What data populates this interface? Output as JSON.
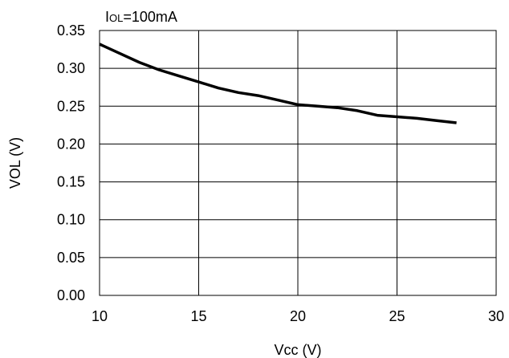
{
  "chart_data": {
    "type": "line",
    "title": "",
    "annotation": {
      "prefix": "I",
      "subscript": "OL",
      "suffix": "=100mA"
    },
    "xlabel": "Vcc (V)",
    "ylabel": "VOL (V)",
    "xlim": [
      10,
      30
    ],
    "ylim": [
      0,
      0.35
    ],
    "xticks": [
      10,
      15,
      20,
      25,
      30
    ],
    "xtick_labels": [
      "10",
      "15",
      "20",
      "25",
      "30"
    ],
    "yticks": [
      0,
      0.05,
      0.1,
      0.15,
      0.2,
      0.25,
      0.3,
      0.35
    ],
    "ytick_labels": [
      "0.00",
      "0.05",
      "0.10",
      "0.15",
      "0.20",
      "0.25",
      "0.30",
      "0.35"
    ],
    "grid": true,
    "line_color": "#000000",
    "series": [
      {
        "x": [
          10,
          11,
          12,
          13,
          14,
          15,
          16,
          17,
          18,
          19,
          20,
          21,
          22,
          23,
          24,
          25,
          26,
          27,
          28
        ],
        "y": [
          0.332,
          0.32,
          0.308,
          0.298,
          0.29,
          0.282,
          0.274,
          0.268,
          0.264,
          0.258,
          0.252,
          0.25,
          0.248,
          0.244,
          0.238,
          0.236,
          0.234,
          0.231,
          0.228
        ]
      }
    ]
  }
}
